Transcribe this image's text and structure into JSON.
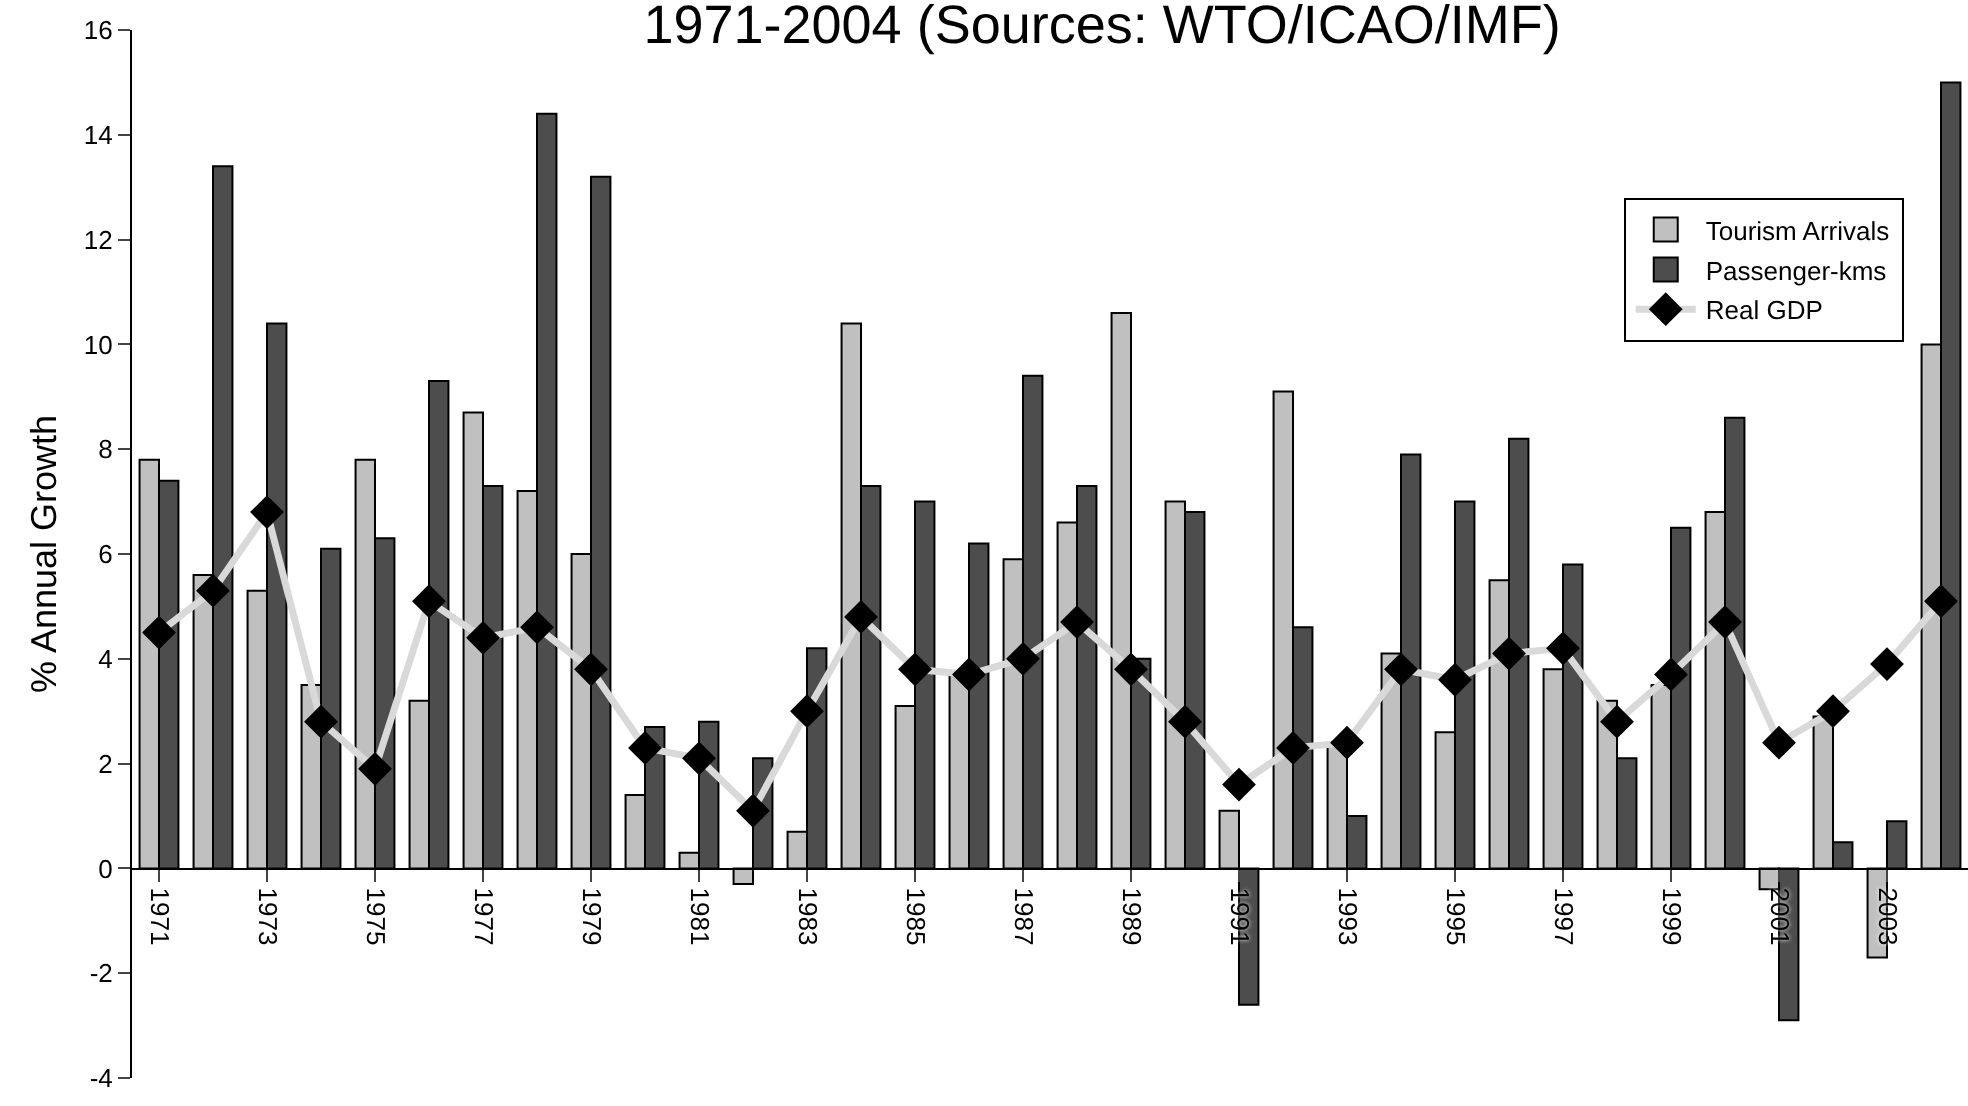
{
  "chart_data": {
    "type": "bar",
    "title": "1971-2004 (Sources: WTO/ICAO/IMF)",
    "ylabel": "% Annual Growth",
    "categories": [
      "1971",
      null,
      "1973",
      null,
      "1975",
      null,
      "1977",
      null,
      "1979",
      null,
      "1981",
      null,
      "1983",
      null,
      "1985",
      null,
      "1987",
      null,
      "1989",
      null,
      "1991",
      null,
      "1993",
      null,
      "1995",
      null,
      "1997",
      null,
      "1999",
      null,
      "2001",
      null,
      "2003",
      null
    ],
    "series": [
      {
        "name": "Tourism Arrivals",
        "color": "#c0c0c0",
        "values": [
          7.8,
          5.6,
          5.3,
          3.5,
          7.8,
          3.2,
          8.7,
          7.2,
          6.0,
          1.4,
          0.3,
          -0.3,
          0.7,
          10.4,
          3.1,
          3.7,
          5.9,
          6.6,
          10.6,
          7.0,
          1.1,
          9.1,
          2.4,
          4.1,
          2.6,
          5.5,
          3.8,
          3.2,
          3.5,
          6.8,
          -0.4,
          2.9,
          -1.7,
          10.0
        ]
      },
      {
        "name": "Passenger-kms",
        "color": "#4d4d4d",
        "values": [
          7.4,
          13.4,
          10.4,
          6.1,
          6.3,
          9.3,
          7.3,
          14.4,
          13.2,
          2.7,
          2.8,
          2.1,
          4.2,
          7.3,
          7.0,
          6.2,
          9.4,
          7.3,
          4.0,
          6.8,
          -2.6,
          4.6,
          1.0,
          7.9,
          7.0,
          8.2,
          5.8,
          2.1,
          6.5,
          8.6,
          -2.9,
          0.5,
          0.9,
          15.0
        ]
      },
      {
        "name": "Real GDP",
        "type": "line",
        "color": "#d9d9d9",
        "marker": "diamond",
        "values": [
          4.5,
          5.3,
          6.8,
          2.8,
          1.9,
          5.1,
          4.4,
          4.6,
          3.8,
          2.3,
          2.1,
          1.1,
          3.0,
          4.8,
          3.8,
          3.7,
          4.0,
          4.7,
          3.8,
          2.8,
          1.6,
          2.3,
          2.4,
          3.8,
          3.6,
          4.1,
          4.2,
          2.8,
          3.7,
          4.7,
          2.4,
          3.0,
          3.9,
          5.1
        ]
      }
    ],
    "ylim": [
      -4,
      16
    ],
    "yticks": [
      -4,
      -2,
      0,
      2,
      4,
      6,
      8,
      10,
      12,
      14,
      16
    ],
    "grid": false,
    "legend": "top right"
  }
}
